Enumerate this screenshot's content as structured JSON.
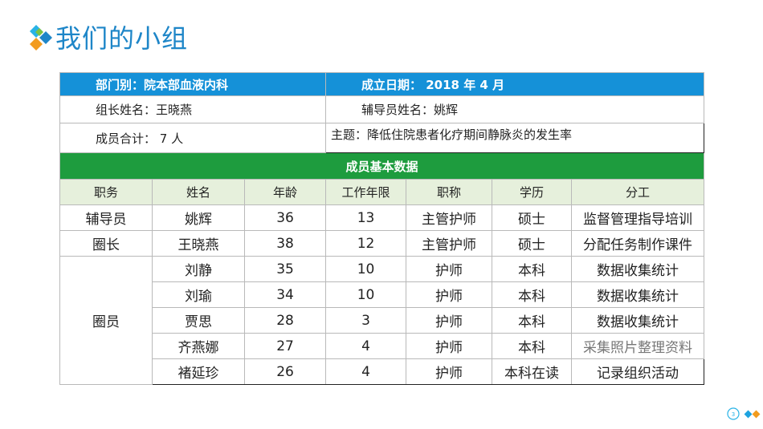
{
  "title": "我们的小组",
  "info": {
    "dept": "部门别：院本部血液内科",
    "date": "成立日期： 2018 年 4 月",
    "leader": "组长姓名：王晓燕",
    "counselor": "辅导员姓名：姚辉",
    "members": "成员合计： 7 人",
    "topic": "主题：降低住院患者化疗期间静脉炎的发生率"
  },
  "section_title": "成员基本数据",
  "columns": [
    "职务",
    "姓名",
    "年龄",
    "工作年限",
    "职称",
    "学历",
    "分工"
  ],
  "rows": [
    {
      "role": "辅导员",
      "name": "姚辉",
      "age": "36",
      "years": "13",
      "title": "主管护师",
      "edu": "硕士",
      "task": "监督管理指导培训"
    },
    {
      "role": "圈长",
      "name": "王晓燕",
      "age": "38",
      "years": "12",
      "title": "主管护师",
      "edu": "硕士",
      "task": "分配任务制作课件"
    },
    {
      "role": "圈员",
      "name": "刘静",
      "age": "35",
      "years": "10",
      "title": "护师",
      "edu": "本科",
      "task": "数据收集统计"
    },
    {
      "role": "",
      "name": "刘瑜",
      "age": "34",
      "years": "10",
      "title": "护师",
      "edu": "本科",
      "task": "数据收集统计"
    },
    {
      "role": "",
      "name": "贾思",
      "age": "28",
      "years": "3",
      "title": "护师",
      "edu": "本科",
      "task": "数据收集统计"
    },
    {
      "role": "",
      "name": "齐燕娜",
      "age": "27",
      "years": "4",
      "title": "护师",
      "edu": "本科",
      "task": "采集照片整理资料"
    },
    {
      "role": "",
      "name": "褚延珍",
      "age": "26",
      "years": "4",
      "title": "护师",
      "edu": "本科在读",
      "task": "记录组织活动"
    }
  ],
  "page_number": "3",
  "colors": {
    "title": "#1e86c8",
    "header_blue": "#1591d8",
    "section_green": "#1e9c3e",
    "column_bg": "#e6f0dc"
  },
  "icons": {
    "logo": "diamond-logo-icon",
    "pager": "page-number-badge"
  }
}
